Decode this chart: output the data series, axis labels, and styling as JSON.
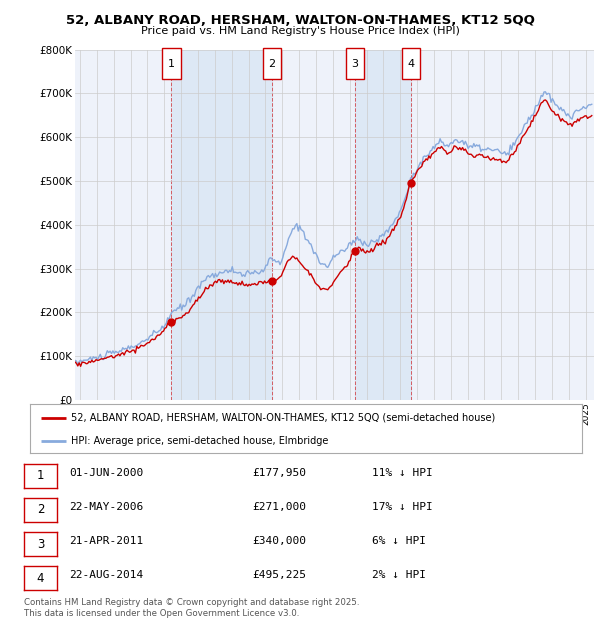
{
  "title": "52, ALBANY ROAD, HERSHAM, WALTON-ON-THAMES, KT12 5QQ",
  "subtitle": "Price paid vs. HM Land Registry's House Price Index (HPI)",
  "ylim": [
    0,
    800000
  ],
  "yticks": [
    0,
    100000,
    200000,
    300000,
    400000,
    500000,
    600000,
    700000,
    800000
  ],
  "ytick_labels": [
    "£0",
    "£100K",
    "£200K",
    "£300K",
    "£400K",
    "£500K",
    "£600K",
    "£700K",
    "£800K"
  ],
  "xlim_start": 1994.7,
  "xlim_end": 2025.5,
  "sale_dates": [
    2000.417,
    2006.39,
    2011.31,
    2014.64
  ],
  "sale_prices": [
    177950,
    271000,
    340000,
    495225
  ],
  "sale_labels": [
    "1",
    "2",
    "3",
    "4"
  ],
  "legend_property": "52, ALBANY ROAD, HERSHAM, WALTON-ON-THAMES, KT12 5QQ (semi-detached house)",
  "legend_hpi": "HPI: Average price, semi-detached house, Elmbridge",
  "table_rows": [
    {
      "num": "1",
      "date": "01-JUN-2000",
      "price": "£177,950",
      "pct": "11% ↓ HPI"
    },
    {
      "num": "2",
      "date": "22-MAY-2006",
      "price": "£271,000",
      "pct": "17% ↓ HPI"
    },
    {
      "num": "3",
      "date": "21-APR-2011",
      "price": "£340,000",
      "pct": "6% ↓ HPI"
    },
    {
      "num": "4",
      "date": "22-AUG-2014",
      "price": "£495,225",
      "pct": "2% ↓ HPI"
    }
  ],
  "footnote": "Contains HM Land Registry data © Crown copyright and database right 2025.\nThis data is licensed under the Open Government Licence v3.0.",
  "property_color": "#cc0000",
  "hpi_color": "#88aadd",
  "shade_color": "#dde8f5",
  "vline_color": "#cc0000",
  "box_color": "#cc0000",
  "bg_color": "#ffffff",
  "plot_bg": "#eef2fa"
}
